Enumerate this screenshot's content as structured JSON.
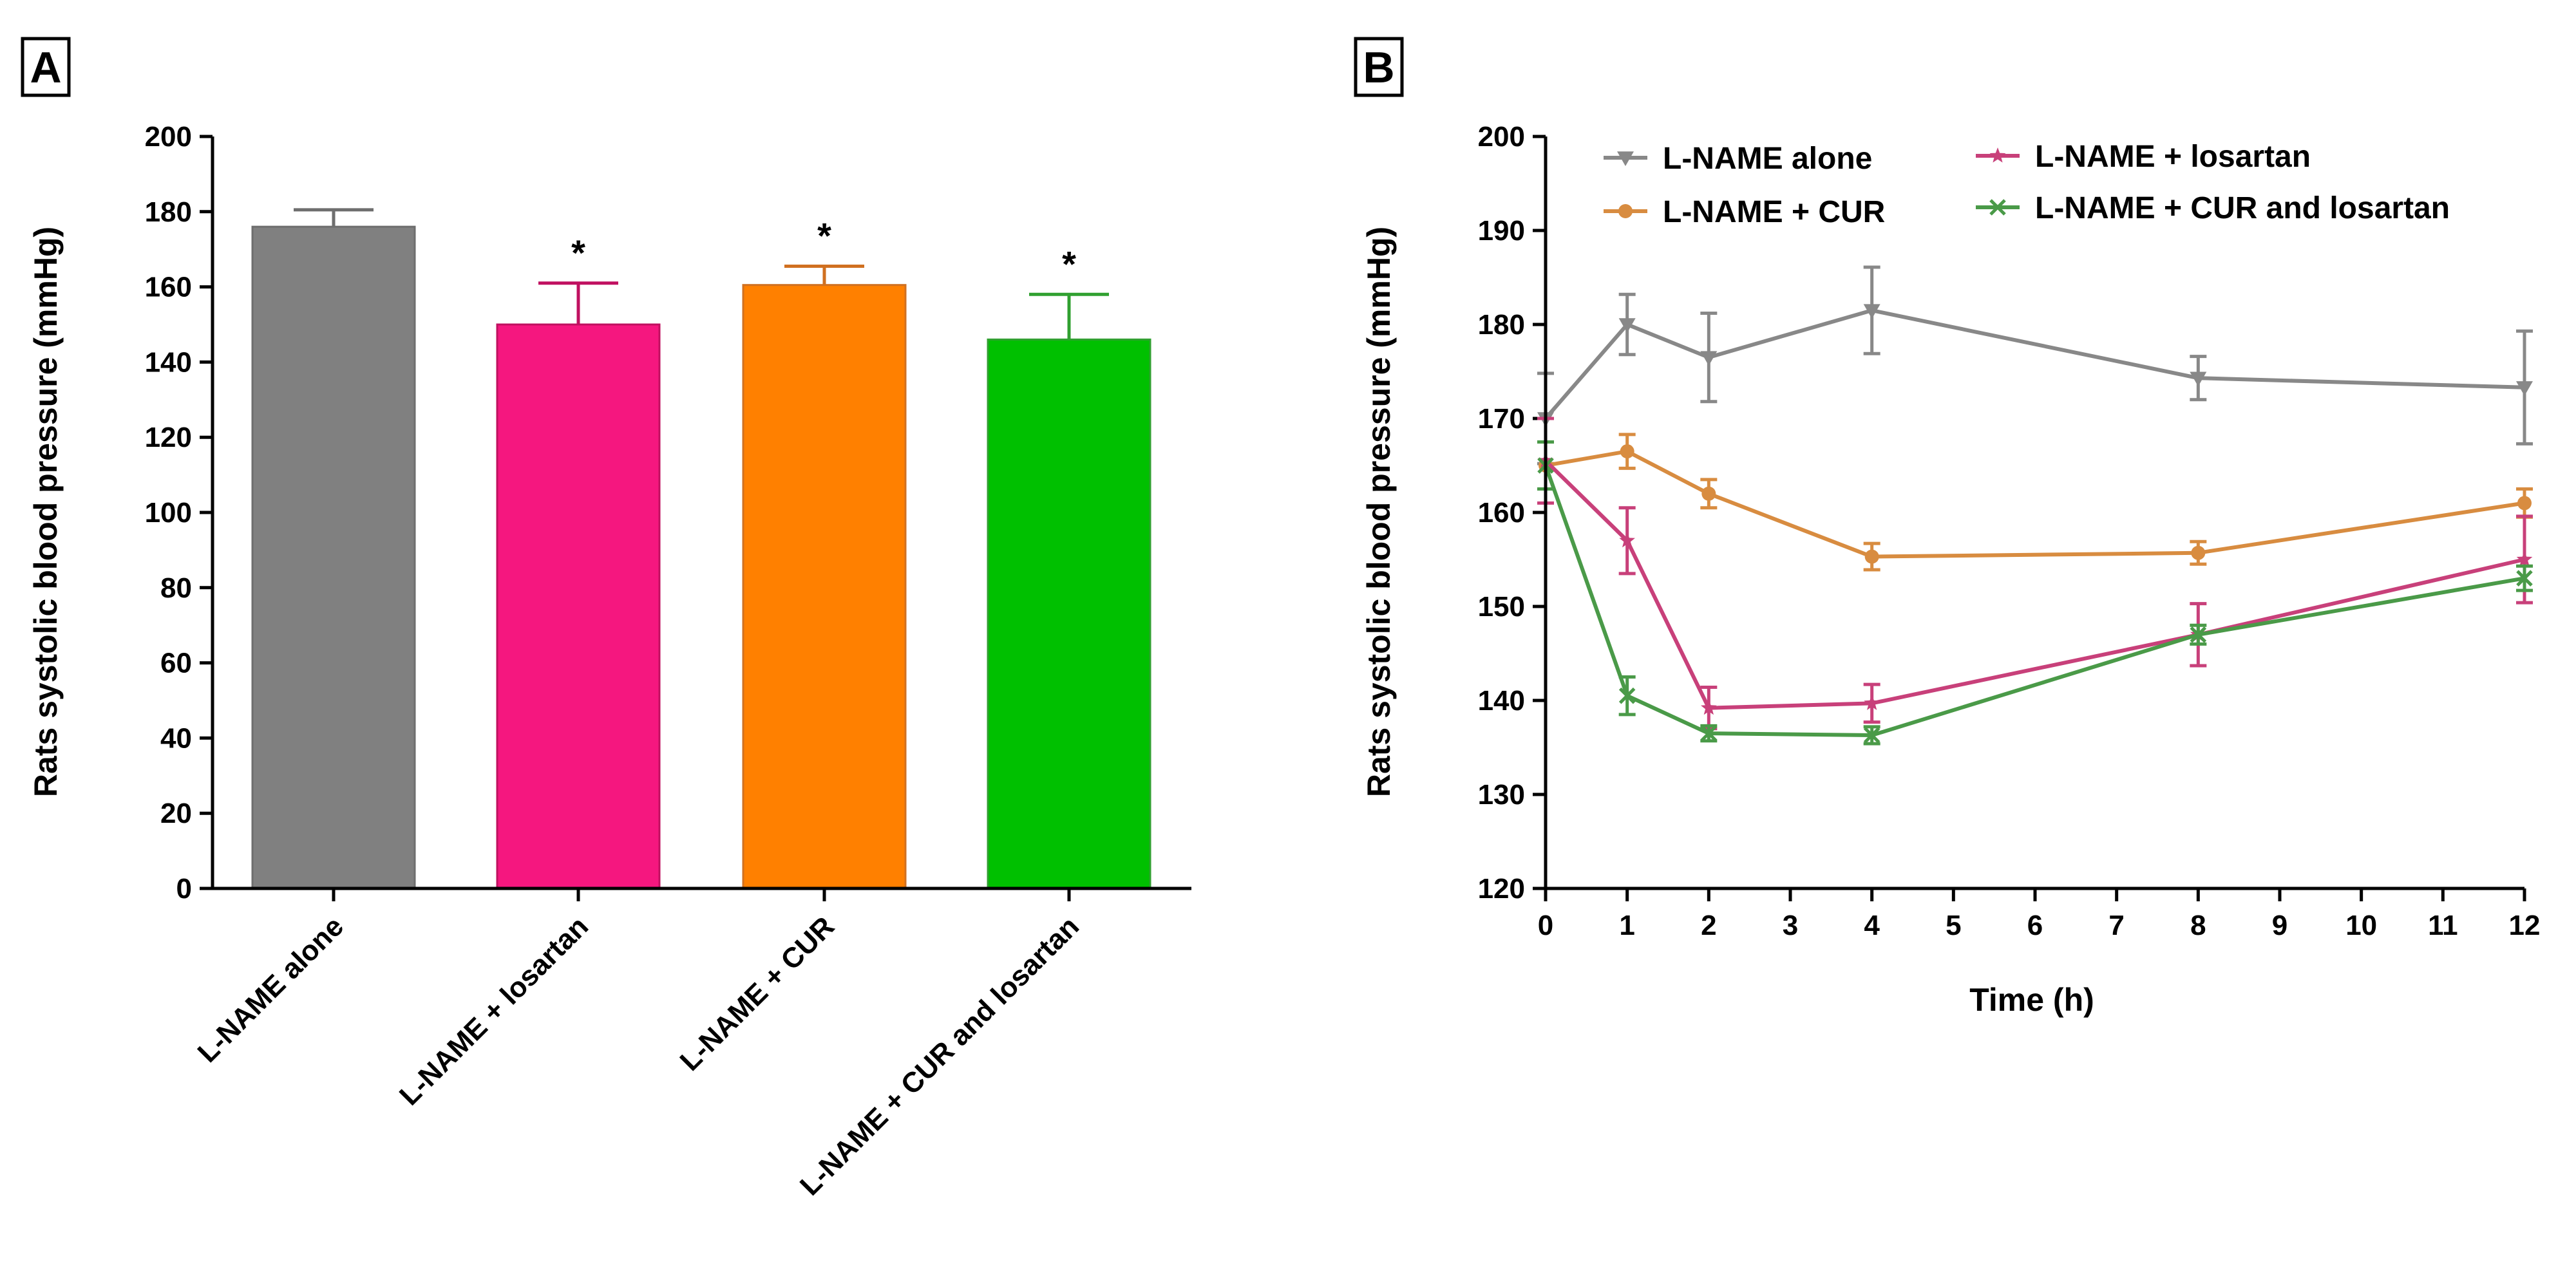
{
  "chart_data": [
    {
      "type": "bar",
      "panel_label": "A",
      "ylabel": "Rats systolic blood pressure (mmHg)",
      "xlabel": "",
      "ylim": [
        0,
        200
      ],
      "yticks": [
        0,
        20,
        40,
        60,
        80,
        100,
        120,
        140,
        160,
        180,
        200
      ],
      "categories": [
        "L-NAME alone",
        "L-NAME + losartan",
        "L-NAME + CUR",
        "L-NAME + CUR and losartan"
      ],
      "values": [
        176,
        150,
        160.5,
        146
      ],
      "errors": [
        4.5,
        11,
        5,
        12
      ],
      "significance": [
        "",
        "*",
        "*",
        "*"
      ],
      "colors": [
        "#808080",
        "#f5177f",
        "#ff8000",
        "#00c000"
      ],
      "edge_colors": [
        "#6e6e6e",
        "#c01060",
        "#d07020",
        "#30a030"
      ]
    },
    {
      "type": "line",
      "panel_label": "B",
      "ylabel": "Rats systolic blood pressure (mmHg)",
      "xlabel": "Time (h)",
      "xlim": [
        0,
        12
      ],
      "ylim": [
        120,
        200
      ],
      "xticks": [
        0,
        1,
        2,
        3,
        4,
        5,
        6,
        7,
        8,
        9,
        10,
        11,
        12
      ],
      "yticks": [
        120,
        130,
        140,
        150,
        160,
        170,
        180,
        190,
        200
      ],
      "x": [
        0,
        1,
        2,
        4,
        8,
        12
      ],
      "series": [
        {
          "name": "L-NAME alone",
          "color": "#888888",
          "marker": "triangle-down",
          "values": [
            170,
            180,
            176.5,
            181.5,
            174.3,
            173.3
          ],
          "errors": [
            4.8,
            3.2,
            4.7,
            4.6,
            2.3,
            6
          ]
        },
        {
          "name": "L-NAME + CUR",
          "color": "#d88c40",
          "marker": "circle",
          "values": [
            165,
            166.5,
            162,
            155.3,
            155.7,
            161
          ],
          "errors": [
            2.5,
            1.8,
            1.5,
            1.4,
            1.2,
            1.5
          ]
        },
        {
          "name": "L-NAME + losartan",
          "color": "#c8407a",
          "marker": "star",
          "values": [
            165.5,
            157,
            139.2,
            139.7,
            147,
            155
          ],
          "errors": [
            4.5,
            3.5,
            2.2,
            2,
            3.3,
            4.6
          ]
        },
        {
          "name": "L-NAME + CUR and losartan",
          "color": "#4a9a48",
          "marker": "x",
          "values": [
            165,
            140.5,
            136.5,
            136.3,
            147,
            153
          ],
          "errors": [
            2.5,
            2,
            0.8,
            0.9,
            1,
            1.3
          ]
        }
      ]
    }
  ]
}
